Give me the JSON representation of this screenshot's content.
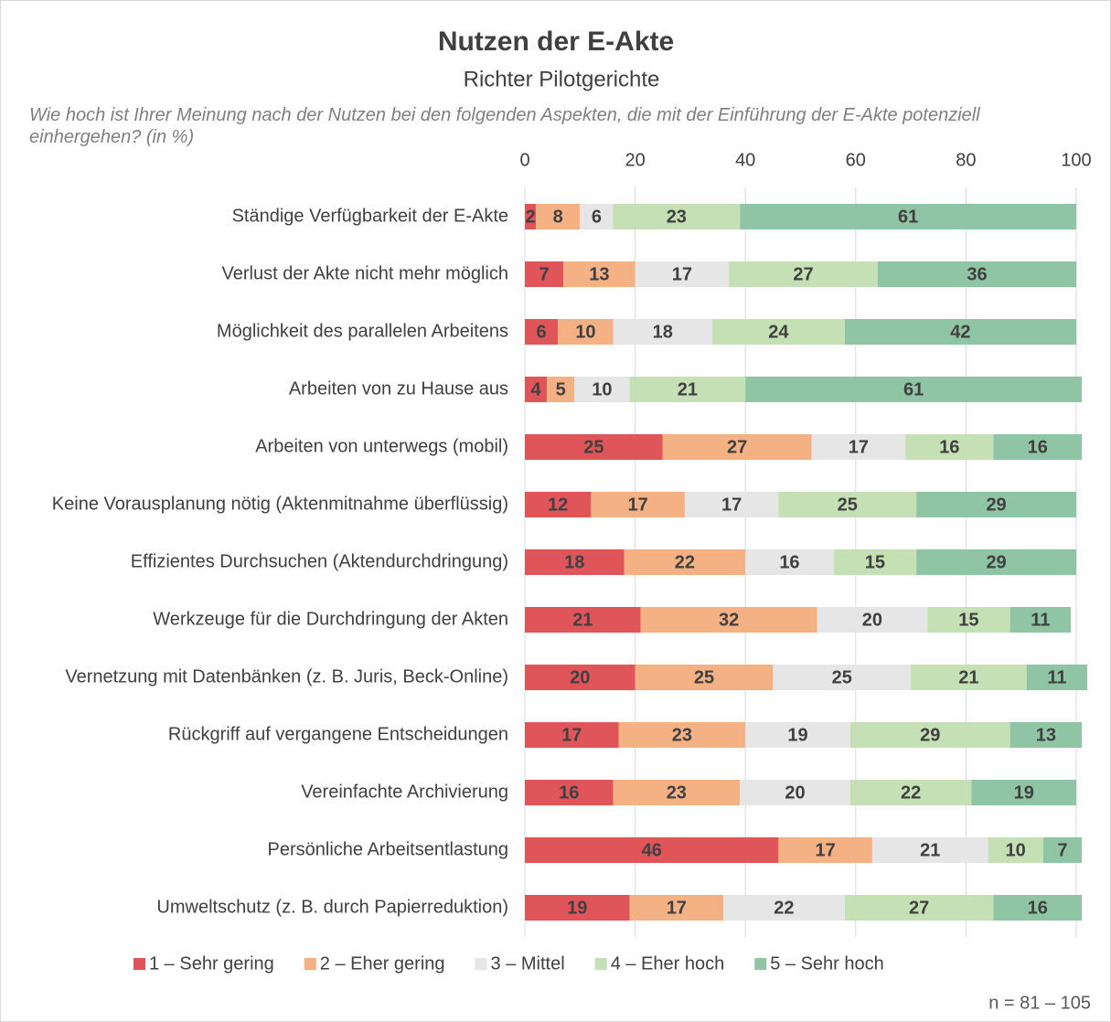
{
  "chart_data": {
    "type": "stacked-barh",
    "title": "Nutzen der E-Akte",
    "subtitle": "Richter Pilotgerichte",
    "question": "Wie hoch ist Ihrer Meinung nach der Nutzen bei den folgenden Aspekten, die mit der Einführung der E-Akte potenziell einhergehen? (in %)",
    "note": "n = 81 – 105",
    "categories": [
      "Ständige Verfügbarkeit der E-Akte",
      "Verlust der Akte nicht mehr möglich",
      "Möglichkeit des parallelen Arbeitens",
      "Arbeiten von zu Hause aus",
      "Arbeiten von unterwegs (mobil)",
      "Keine Vorausplanung nötig (Aktenmitnahme überflüssig)",
      "Effizientes Durchsuchen (Aktendurchdringung)",
      "Werkzeuge für die Durchdringung der Akten",
      "Vernetzung mit Datenbänken (z. B. Juris, Beck-Online)",
      "Rückgriff auf vergangene Entscheidungen",
      "Vereinfachte Archivierung",
      "Persönliche Arbeitsentlastung",
      "Umweltschutz (z. B. durch Papierreduktion)"
    ],
    "series": [
      {
        "name": "1 – Sehr gering",
        "color": "#e0555a",
        "values": [
          2,
          7,
          6,
          4,
          25,
          12,
          18,
          21,
          20,
          17,
          16,
          46,
          19
        ]
      },
      {
        "name": "2 – Eher gering",
        "color": "#f4b183",
        "values": [
          8,
          13,
          10,
          5,
          27,
          17,
          22,
          32,
          25,
          23,
          23,
          17,
          17
        ]
      },
      {
        "name": "3 – Mittel",
        "color": "#e7e6e6",
        "values": [
          6,
          17,
          18,
          10,
          17,
          17,
          16,
          20,
          25,
          19,
          20,
          21,
          22
        ]
      },
      {
        "name": "4 – Eher hoch",
        "color": "#c5e0b4",
        "values": [
          23,
          27,
          24,
          21,
          16,
          25,
          15,
          15,
          21,
          29,
          22,
          10,
          27
        ]
      },
      {
        "name": "5 – Sehr hoch",
        "color": "#8fc5a5",
        "values": [
          61,
          36,
          42,
          61,
          16,
          29,
          29,
          11,
          11,
          13,
          19,
          7,
          16
        ]
      }
    ],
    "xlim": [
      0,
      100
    ],
    "xticks": [
      0,
      20,
      40,
      60,
      80,
      100
    ],
    "grid": true
  }
}
